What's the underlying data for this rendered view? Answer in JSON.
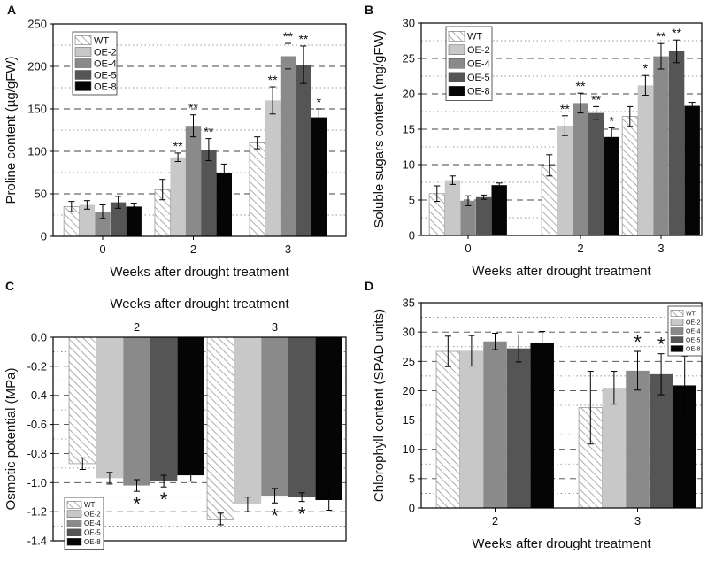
{
  "colors": {
    "WT": "hatch",
    "OE-2": "#c8c8c8",
    "OE-4": "#8a8a8a",
    "OE-5": "#555555",
    "OE-8": "#050505"
  },
  "chart_data": [
    {
      "panel": "A",
      "type": "bar",
      "ylabel": "Proline content (µg/gFW)",
      "xlabel": "Weeks after drought treatment",
      "xlabel_position": "bottom",
      "categories": [
        "0",
        "2",
        "3"
      ],
      "ylim": [
        0,
        250
      ],
      "yticks": [
        0,
        50,
        100,
        150,
        200,
        250
      ],
      "ytick_labels": [
        "0",
        "50",
        "100",
        "150",
        "200",
        "250"
      ],
      "legend": [
        "WT",
        "OE-2",
        "OE-4",
        "OE-5",
        "OE-8"
      ],
      "legend_position": "top-left",
      "series": [
        {
          "name": "WT",
          "values": [
            35,
            55,
            110
          ],
          "errors": [
            6,
            12,
            7
          ]
        },
        {
          "name": "OE-2",
          "values": [
            37,
            93,
            160
          ],
          "errors": [
            5,
            5,
            16
          ]
        },
        {
          "name": "OE-4",
          "values": [
            29,
            130,
            212
          ],
          "errors": [
            8,
            13,
            15
          ]
        },
        {
          "name": "OE-5",
          "values": [
            40,
            102,
            202
          ],
          "errors": [
            7,
            13,
            22
          ]
        },
        {
          "name": "OE-8",
          "values": [
            35,
            75,
            140
          ],
          "errors": [
            4,
            10,
            10
          ]
        }
      ],
      "sig_marks": [
        {
          "category": 1,
          "series": 1,
          "label": "**"
        },
        {
          "category": 1,
          "series": 2,
          "label": "**"
        },
        {
          "category": 1,
          "series": 3,
          "label": "**"
        },
        {
          "category": 2,
          "series": 1,
          "label": "**"
        },
        {
          "category": 2,
          "series": 2,
          "label": "**"
        },
        {
          "category": 2,
          "series": 3,
          "label": "**"
        },
        {
          "category": 2,
          "series": 4,
          "label": "*"
        }
      ]
    },
    {
      "panel": "B",
      "type": "bar",
      "ylabel": "Soluble sugars content (mg/gFW)",
      "xlabel": "Weeks after drought treatment",
      "xlabel_position": "bottom",
      "categories": [
        "0",
        "2",
        "3"
      ],
      "ylim": [
        0,
        30
      ],
      "yticks": [
        0,
        5,
        10,
        15,
        20,
        25,
        30
      ],
      "ytick_labels": [
        "0",
        "5",
        "10",
        "15",
        "20",
        "25",
        "30"
      ],
      "legend": [
        "WT",
        "OE-2",
        "OE-4",
        "OE-5",
        "OE-8"
      ],
      "legend_position": "top-left",
      "series": [
        {
          "name": "WT",
          "values": [
            5.9,
            9.9,
            16.8
          ],
          "errors": [
            1.1,
            1.5,
            1.4
          ]
        },
        {
          "name": "OE-2",
          "values": [
            7.8,
            15.5,
            21.2
          ],
          "errors": [
            0.6,
            1.4,
            1.4
          ]
        },
        {
          "name": "OE-4",
          "values": [
            4.9,
            18.7,
            25.3
          ],
          "errors": [
            0.7,
            1.4,
            1.8
          ]
        },
        {
          "name": "OE-5",
          "values": [
            5.4,
            17.3,
            26.0
          ],
          "errors": [
            0.3,
            0.9,
            1.6
          ]
        },
        {
          "name": "OE-8",
          "values": [
            7.1,
            13.9,
            18.3
          ],
          "errors": [
            0.3,
            1.3,
            0.5
          ]
        }
      ],
      "sig_marks": [
        {
          "category": 1,
          "series": 1,
          "label": "**"
        },
        {
          "category": 1,
          "series": 2,
          "label": "**"
        },
        {
          "category": 1,
          "series": 3,
          "label": "**"
        },
        {
          "category": 1,
          "series": 4,
          "label": "*"
        },
        {
          "category": 2,
          "series": 1,
          "label": "*"
        },
        {
          "category": 2,
          "series": 2,
          "label": "**"
        },
        {
          "category": 2,
          "series": 3,
          "label": "**"
        }
      ]
    },
    {
      "panel": "C",
      "type": "bar",
      "ylabel": "Osmotic potential (MPa)",
      "xlabel": "Weeks after drought treatment",
      "xlabel_position": "top",
      "categories": [
        "2",
        "3"
      ],
      "ylim": [
        -1.4,
        0
      ],
      "yticks": [
        0,
        -0.2,
        -0.4,
        -0.6,
        -0.8,
        -1.0,
        -1.2,
        -1.4
      ],
      "ytick_labels": [
        "0.0",
        "-0.2",
        "-0.4",
        "-0.6",
        "-0.8",
        "-1.0",
        "-1.2",
        "-1.4"
      ],
      "legend": [
        "WT",
        "OE-2",
        "OE-4",
        "OE-5",
        "OE-8"
      ],
      "legend_position": "bottom-left",
      "series": [
        {
          "name": "WT",
          "values": [
            -0.87,
            -1.25
          ],
          "errors": [
            0.04,
            0.04
          ]
        },
        {
          "name": "OE-2",
          "values": [
            -0.97,
            -1.15
          ],
          "errors": [
            0.04,
            0.05
          ]
        },
        {
          "name": "OE-4",
          "values": [
            -1.02,
            -1.09
          ],
          "errors": [
            0.04,
            0.05
          ]
        },
        {
          "name": "OE-5",
          "values": [
            -0.99,
            -1.1
          ],
          "errors": [
            0.04,
            0.03
          ]
        },
        {
          "name": "OE-8",
          "values": [
            -0.95,
            -1.12
          ],
          "errors": [
            0.04,
            0.07
          ]
        }
      ],
      "sig_marks": [
        {
          "category": 0,
          "series": 2,
          "label": "*"
        },
        {
          "category": 0,
          "series": 3,
          "label": "*"
        },
        {
          "category": 1,
          "series": 2,
          "label": "*"
        },
        {
          "category": 1,
          "series": 3,
          "label": "*"
        }
      ]
    },
    {
      "panel": "D",
      "type": "bar",
      "ylabel": "Chlorophyll content (SPAD units)",
      "xlabel": "Weeks after drought treatment",
      "xlabel_position": "bottom",
      "categories": [
        "2",
        "3"
      ],
      "ylim": [
        0,
        35
      ],
      "yticks": [
        0,
        5,
        10,
        15,
        20,
        25,
        30,
        35
      ],
      "ytick_labels": [
        "0",
        "5",
        "10",
        "15",
        "20",
        "25",
        "30",
        "35"
      ],
      "legend": [
        "WT",
        "OE-2",
        "OE-4",
        "OE-5",
        "OE-8"
      ],
      "legend_position": "top-right",
      "series": [
        {
          "name": "WT",
          "values": [
            26.7,
            17.1
          ],
          "errors": [
            2.6,
            6.2
          ]
        },
        {
          "name": "OE-2",
          "values": [
            26.8,
            20.5
          ],
          "errors": [
            2.6,
            2.8
          ]
        },
        {
          "name": "OE-4",
          "values": [
            28.4,
            23.4
          ],
          "errors": [
            1.4,
            3.3
          ]
        },
        {
          "name": "OE-5",
          "values": [
            27.2,
            22.8
          ],
          "errors": [
            2.3,
            3.5
          ]
        },
        {
          "name": "OE-8",
          "values": [
            28.1,
            20.9
          ],
          "errors": [
            2.0,
            5.0
          ]
        }
      ],
      "sig_marks": [
        {
          "category": 1,
          "series": 2,
          "label": "*"
        },
        {
          "category": 1,
          "series": 3,
          "label": "*"
        }
      ]
    }
  ]
}
